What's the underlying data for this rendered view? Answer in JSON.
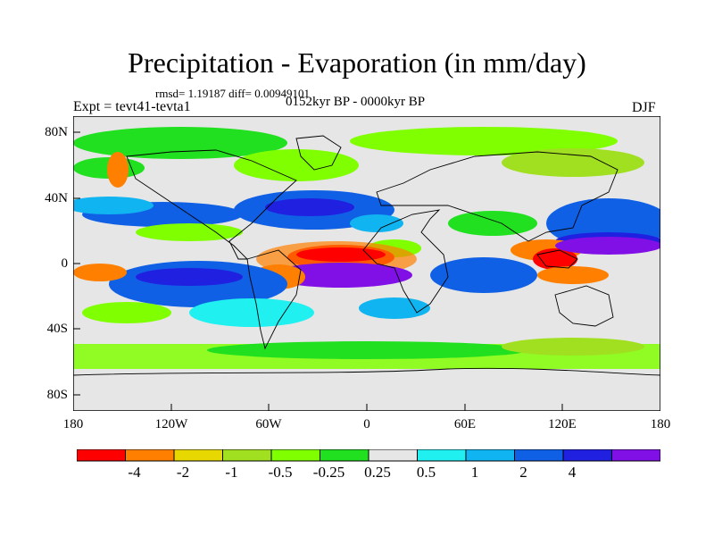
{
  "title": "Precipitation - Evaporation (in mm/day)",
  "stats": "rmsd= 1.19187 diff= 0.00949101",
  "experiment": "Expt = tevt41-tevta1",
  "period": "0152kyr BP - 0000kyr BP",
  "season": "DJF",
  "lat_ticks": [
    "80N",
    "40N",
    "0",
    "40S",
    "80S"
  ],
  "lon_ticks": [
    "180",
    "120W",
    "60W",
    "0",
    "60E",
    "120E",
    "180"
  ],
  "colorbar": {
    "colors": [
      "#ff0000",
      "#ff8000",
      "#e6d800",
      "#a0e020",
      "#80ff00",
      "#20e020",
      "#e6e6e6",
      "#20f0f0",
      "#10b4f0",
      "#1060e6",
      "#2020e0",
      "#8010e6"
    ],
    "labels": [
      "-4",
      "-2",
      "-1",
      "-0.5",
      "-0.25",
      "0.25",
      "0.5",
      "1",
      "2",
      "4"
    ]
  }
}
